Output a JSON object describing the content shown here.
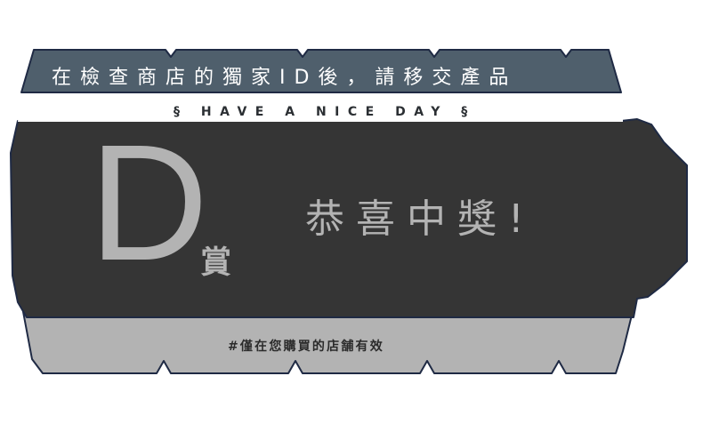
{
  "ticket": {
    "header": "在檢查商店的獨家ID後，請移交產品",
    "tagline": "§ HAVE A NICE DAY §",
    "prize_letter": "D",
    "prize_suffix": "賞",
    "congrats": "恭喜中獎!",
    "footer_note": "#僅在您購買的店舗有效"
  },
  "colors": {
    "header_band": "#4f5f6c",
    "white_strip": "#ffffff",
    "main_body": "#353535",
    "footer_band": "#b3b3b3",
    "outline": "#1f2a44",
    "prize_text": "#b3b3b3"
  }
}
